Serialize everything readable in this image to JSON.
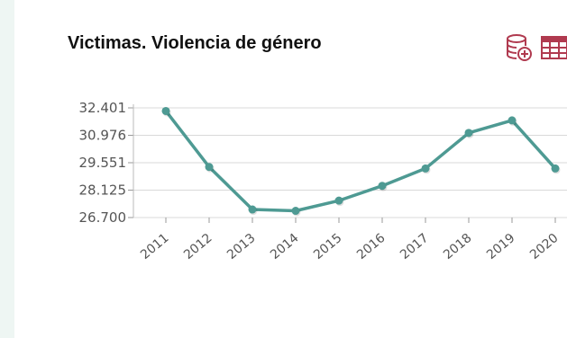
{
  "panel": {
    "title": "Victimas. Violencia de género",
    "toolbar": [
      {
        "icon": "database-add-icon",
        "color": "#b03a4f"
      },
      {
        "icon": "table-icon",
        "color": "#b03a4f"
      }
    ]
  },
  "chart_data": {
    "type": "line",
    "title": "Victimas. Violencia de género",
    "categories": [
      "2011",
      "2012",
      "2013",
      "2014",
      "2015",
      "2016",
      "2017",
      "2018",
      "2019",
      "2020"
    ],
    "series": [
      {
        "values": [
          32.24,
          29.33,
          27.12,
          27.05,
          27.58,
          28.35,
          29.25,
          31.1,
          31.75,
          29.25
        ],
        "color": "#4e9a93"
      }
    ],
    "yticks": [
      "32.401",
      "30.976",
      "29.551",
      "28.125",
      "26.700"
    ],
    "ylim": [
      26.7,
      32.401
    ],
    "grid": true,
    "x_labels_rotated": true
  }
}
